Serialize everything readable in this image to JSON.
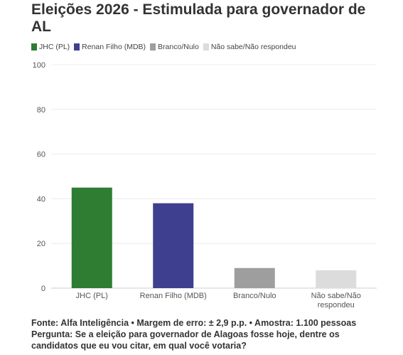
{
  "chart_data": {
    "type": "bar",
    "title": "Eleições 2026 - Estimulada para governador de AL",
    "categories": [
      "JHC (PL)",
      "Renan Filho (MDB)",
      "Branco/Nulo",
      "Não sabe/Não respondeu"
    ],
    "category_lines": [
      [
        "JHC (PL)"
      ],
      [
        "Renan Filho (MDB)"
      ],
      [
        "Branco/Nulo"
      ],
      [
        "Não sabe/Não",
        "respondeu"
      ]
    ],
    "values": [
      45,
      38,
      9,
      8
    ],
    "colors": [
      "#2e7d32",
      "#3f3f8f",
      "#9e9e9e",
      "#dcdcdc"
    ],
    "ylim": [
      0,
      100
    ],
    "yticks": [
      0,
      20,
      40,
      60,
      80,
      100
    ],
    "xlabel": "",
    "ylabel": "",
    "grid": true,
    "legend": {
      "position": "top-left",
      "entries": [
        {
          "label": "JHC (PL)",
          "color": "#2e7d32"
        },
        {
          "label": "Renan Filho (MDB)",
          "color": "#3f3f8f"
        },
        {
          "label": "Branco/Nulo",
          "color": "#9e9e9e"
        },
        {
          "label": "Não sabe/Não respondeu",
          "color": "#dcdcdc"
        }
      ]
    }
  },
  "footer": {
    "source": "Fonte: Alfa Inteligência • Margem de erro: ± 2,9 p.p. • Amostra: 1.100 pessoas",
    "question_line1": "Pergunta: Se a eleição para governador de Alagoas fosse hoje, dentre os",
    "question_line2": "candidatos que eu vou citar, em qual você votaria?"
  }
}
